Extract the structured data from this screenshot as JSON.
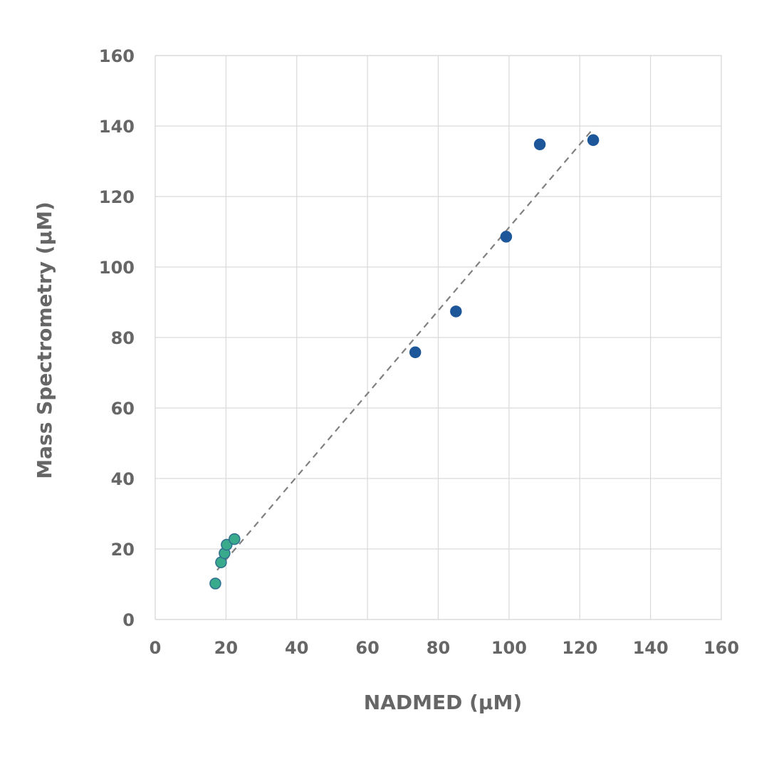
{
  "chart_data": {
    "type": "scatter",
    "title": "",
    "xlabel": "NADMED (µM)",
    "ylabel": "Mass Spectrometry (µM)",
    "xlim": [
      0,
      160
    ],
    "ylim": [
      0,
      160
    ],
    "x_ticks": [
      "0",
      "20",
      "40",
      "60",
      "80",
      "100",
      "120",
      "140",
      "160"
    ],
    "y_ticks": [
      "0",
      "20",
      "40",
      "60",
      "80",
      "100",
      "120",
      "140",
      "160"
    ],
    "grid": true,
    "legend": "none",
    "series": [
      {
        "color": "#3aaa8c",
        "edge_color": "#2e6f8e",
        "points": [
          {
            "x": 17.0,
            "y": 10.2
          },
          {
            "x": 18.6,
            "y": 16.2
          },
          {
            "x": 19.6,
            "y": 18.8
          },
          {
            "x": 20.2,
            "y": 21.2
          },
          {
            "x": 22.4,
            "y": 22.8
          }
        ]
      },
      {
        "color": "#1e5799",
        "edge_color": "#1e5799",
        "points": [
          {
            "x": 73.5,
            "y": 75.8
          },
          {
            "x": 85.0,
            "y": 87.4
          },
          {
            "x": 99.2,
            "y": 108.6
          },
          {
            "x": 108.7,
            "y": 134.8
          },
          {
            "x": 123.8,
            "y": 136.0
          }
        ]
      }
    ],
    "trendline": {
      "style": "dashed",
      "color": "#808080",
      "x": [
        17.5,
        124.0
      ],
      "y": [
        14.0,
        139.5
      ]
    }
  }
}
